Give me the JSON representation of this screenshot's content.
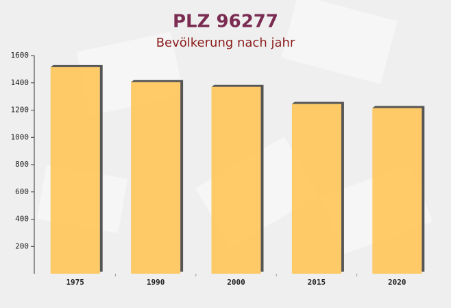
{
  "chart_data": {
    "type": "bar",
    "title": "PLZ 96277",
    "subtitle": "Bevölkerung nach jahr",
    "categories": [
      "1975",
      "1990",
      "2000",
      "2015",
      "2020"
    ],
    "values": [
      1515,
      1405,
      1370,
      1245,
      1215
    ],
    "color": "#ffc34f",
    "ylim": [
      0,
      1600
    ],
    "yticks": [
      200,
      400,
      600,
      800,
      1000,
      1200,
      1400,
      1600
    ]
  }
}
